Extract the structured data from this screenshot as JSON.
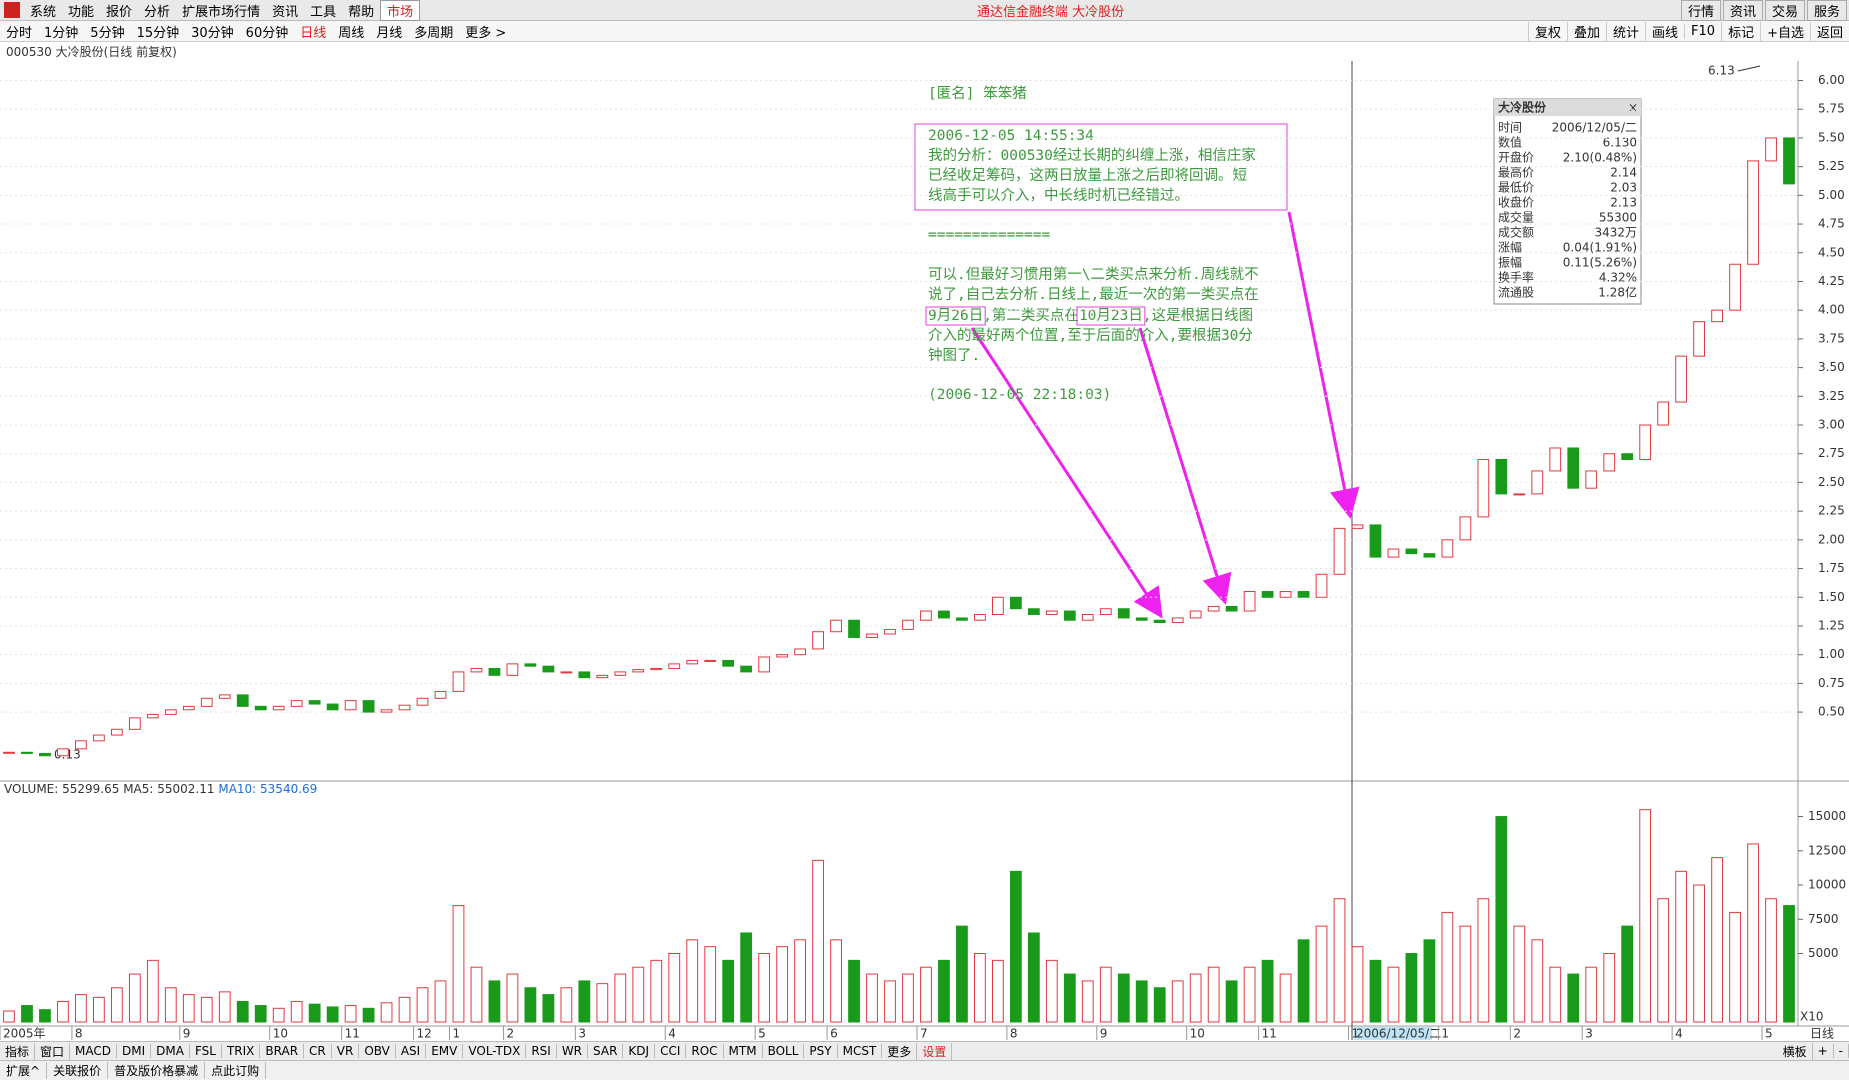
{
  "title_bar": {
    "menu": [
      "系统",
      "功能",
      "报价",
      "分析",
      "扩展市场行情",
      "资讯",
      "工具",
      "帮助"
    ],
    "market": "市场",
    "title": "通达信金融终端 大冷股份",
    "right": [
      "行情",
      "资讯",
      "交易",
      "服务"
    ]
  },
  "toolbar": {
    "periods": [
      "分时",
      "1分钟",
      "5分钟",
      "15分钟",
      "30分钟",
      "60分钟",
      "日线",
      "周线",
      "月线",
      "多周期",
      "更多 >"
    ],
    "active": "日线",
    "right": [
      "复权",
      "叠加",
      "统计",
      "画线",
      "F10",
      "标记",
      "+自选",
      "返回"
    ]
  },
  "header": "000530 大冷股份(日线 前复权)",
  "chart_data": [
    {
      "type": "candlestick",
      "series": [
        {
          "name": "大冷股份",
          "up_color": "#e0393e",
          "down_color": "#1a9a1a",
          "values": [
            0.15,
            0.14,
            0.12,
            0.18,
            0.25,
            0.3,
            0.35,
            0.45,
            0.48,
            0.52,
            0.55,
            0.62,
            0.65,
            0.55,
            0.52,
            0.55,
            0.6,
            0.57,
            0.52,
            0.6,
            0.5,
            0.52,
            0.56,
            0.62,
            0.68,
            0.85,
            0.88,
            0.82,
            0.92,
            0.9,
            0.85,
            0.85,
            0.8,
            0.82,
            0.85,
            0.87,
            0.88,
            0.92,
            0.95,
            0.95,
            0.9,
            0.85,
            0.98,
            1.0,
            1.05,
            1.2,
            1.3,
            1.15,
            1.18,
            1.22,
            1.3,
            1.38,
            1.32,
            1.3,
            1.35,
            1.5,
            1.4,
            1.35,
            1.38,
            1.3,
            1.35,
            1.4,
            1.32,
            1.3,
            1.28,
            1.32,
            1.38,
            1.42,
            1.38,
            1.55,
            1.5,
            1.55,
            1.5,
            1.7,
            2.1,
            2.13,
            1.85,
            1.92,
            1.88,
            1.85,
            2.0,
            2.2,
            2.7,
            2.4,
            2.4,
            2.6,
            2.8,
            2.45,
            2.6,
            2.75,
            2.7,
            3.0,
            3.2,
            3.6,
            3.9,
            4.0,
            4.4,
            5.3,
            5.5,
            5.1
          ]
        }
      ],
      "categories": [
        "2005年",
        null,
        null,
        null,
        "8",
        null,
        null,
        null,
        null,
        null,
        "9",
        null,
        null,
        null,
        null,
        "10",
        null,
        null,
        null,
        "11",
        null,
        null,
        null,
        "12",
        null,
        "1",
        null,
        null,
        "2",
        null,
        null,
        null,
        "3",
        null,
        null,
        null,
        null,
        "4",
        null,
        null,
        null,
        null,
        "5",
        null,
        null,
        null,
        "6",
        null,
        null,
        null,
        null,
        "7",
        null,
        null,
        null,
        null,
        "8",
        null,
        null,
        null,
        null,
        "9",
        null,
        null,
        null,
        null,
        "10",
        null,
        null,
        null,
        "11",
        null,
        null,
        null,
        null,
        "1",
        null,
        null,
        null,
        null,
        "1",
        null,
        null,
        null,
        "2",
        null,
        null,
        null,
        "3",
        null,
        null,
        null,
        null,
        "4",
        null,
        null,
        null,
        null,
        "5",
        null
      ],
      "ylim": [
        -0.1,
        6.17
      ],
      "yticks": [
        {
          "value": 0.5,
          "label": "0.50"
        },
        {
          "value": 0.75,
          "label": "0.75"
        },
        {
          "value": 1,
          "label": "1.00"
        },
        {
          "value": 1.25,
          "label": "1.25"
        },
        {
          "value": 1.5,
          "label": "1.50"
        },
        {
          "value": 1.75,
          "label": "1.75"
        },
        {
          "value": 2,
          "label": "2.00"
        },
        {
          "value": 2.25,
          "label": "2.25"
        },
        {
          "value": 2.5,
          "label": "2.50"
        },
        {
          "value": 2.75,
          "label": "2.75"
        },
        {
          "value": 3,
          "label": "3.00"
        },
        {
          "value": 3.25,
          "label": "3.25"
        },
        {
          "value": 3.5,
          "label": "3.50"
        },
        {
          "value": 3.75,
          "label": "3.75"
        },
        {
          "value": 4,
          "label": "4.00"
        },
        {
          "value": 4.25,
          "label": "4.25"
        },
        {
          "value": 4.5,
          "label": "4.50"
        },
        {
          "value": 4.75,
          "label": "4.75"
        },
        {
          "value": 5,
          "label": "5.00"
        },
        {
          "value": 5.25,
          "label": "5.25"
        },
        {
          "value": 5.5,
          "label": "5.50"
        },
        {
          "value": 5.75,
          "label": "5.75"
        },
        {
          "value": 6,
          "label": "6.00"
        }
      ],
      "grid": true,
      "max_label": "6.13",
      "min_label": "0.13",
      "cursor_date": "2006/12/05/二",
      "period_label": "日线"
    },
    {
      "type": "bar",
      "title": "VOLUME: 55299.65",
      "ma_labels": [
        {
          "text": "MA5: 55002.11",
          "color": "#333"
        },
        {
          "text": "MA10: 53540.69",
          "color": "#1c6fd0"
        }
      ],
      "values": [
        800,
        1200,
        900,
        1500,
        2000,
        1800,
        2500,
        3500,
        4500,
        2500,
        2000,
        1800,
        2200,
        1500,
        1200,
        1000,
        1500,
        1300,
        1100,
        1200,
        1000,
        1400,
        1800,
        2500,
        3000,
        8500,
        4000,
        3000,
        3500,
        2500,
        2000,
        2500,
        3000,
        2800,
        3500,
        4000,
        4500,
        5000,
        6000,
        5500,
        4500,
        6500,
        5000,
        5500,
        6000,
        11800,
        6000,
        4500,
        3500,
        3000,
        3500,
        4000,
        4500,
        7000,
        5000,
        4500,
        11000,
        6500,
        4500,
        3500,
        3000,
        4000,
        3500,
        3000,
        2500,
        3000,
        3500,
        4000,
        3000,
        4000,
        4500,
        3500,
        6000,
        7000,
        9000,
        5500,
        4500,
        4000,
        5000,
        6000,
        8000,
        7000,
        9000,
        15000,
        7000,
        6000,
        4000,
        3500,
        4000,
        5000,
        7000,
        15500,
        9000,
        11000,
        10000,
        12000,
        8000,
        13000,
        9000,
        8500
      ],
      "ylim": [
        0,
        16500
      ],
      "yticks": [
        5000,
        7500,
        10000,
        12500,
        15000
      ],
      "unit_label": "X10"
    }
  ],
  "annotation": {
    "author": "[匿名] 笨笨猪",
    "time1": "2006-12-05 14:55:34",
    "lines1": [
      "我的分析：000530经过长期的纠缠上涨，相信庄家",
      "已经收足筹码，这两日放量上涨之后即将回调。短",
      "线高手可以介入，中长线时机已经错过。"
    ],
    "separator": "==============",
    "lines2": [
      "可以.但最好习惯用第一\\二类买点来分析.周线就不",
      "说了,自己去分析.日线上,最近一次的第一类买点在"
    ],
    "line3": [
      "9月26日",
      ",第二类买点在",
      "10月23日",
      ",这是根据日线图"
    ],
    "lines4": [
      "介入的最好两个位置,至于后面的介入,要根据30分",
      "钟图了."
    ],
    "time2": "(2006-12-05 22:18:03)"
  },
  "info_panel": {
    "title": "大冷股份",
    "rows": [
      {
        "label": "时间",
        "value": "2006/12/05/二",
        "color": "#333"
      },
      {
        "label": "数值",
        "value": "6.130",
        "color": "#333"
      },
      {
        "label": "开盘价",
        "value": "2.10(0.48%)",
        "color": "#e0393e"
      },
      {
        "label": "最高价",
        "value": "2.14",
        "color": "#e0393e"
      },
      {
        "label": "最低价",
        "value": "2.03",
        "color": "#1a9a1a"
      },
      {
        "label": "收盘价",
        "value": "2.13",
        "color": "#e0393e"
      },
      {
        "label": "成交量",
        "value": "55300",
        "color": "#333"
      },
      {
        "label": "成交额",
        "value": "3432万",
        "color": "#333"
      },
      {
        "label": "涨幅",
        "value": "0.04(1.91%)",
        "color": "#e0393e"
      },
      {
        "label": "振幅",
        "value": "0.11(5.26%)",
        "color": "#333"
      },
      {
        "label": "换手率",
        "value": "4.32%",
        "color": "#333"
      },
      {
        "label": "流通股",
        "value": "1.28亿",
        "color": "#333"
      }
    ]
  },
  "tabs": {
    "items": [
      "指标",
      "窗口",
      "MACD",
      "DMI",
      "DMA",
      "FSL",
      "TRIX",
      "BRAR",
      "CR",
      "VR",
      "OBV",
      "ASI",
      "EMV",
      "VOL-TDX",
      "RSI",
      "WR",
      "SAR",
      "KDJ",
      "CCI",
      "ROC",
      "MTM",
      "BOLL",
      "PSY",
      "MCST",
      "更多"
    ],
    "settings": "设置",
    "right": [
      "横板",
      "+",
      "-"
    ]
  },
  "status": [
    "扩展^",
    "关联报价",
    "普及版价格暴减",
    "点此订购"
  ]
}
